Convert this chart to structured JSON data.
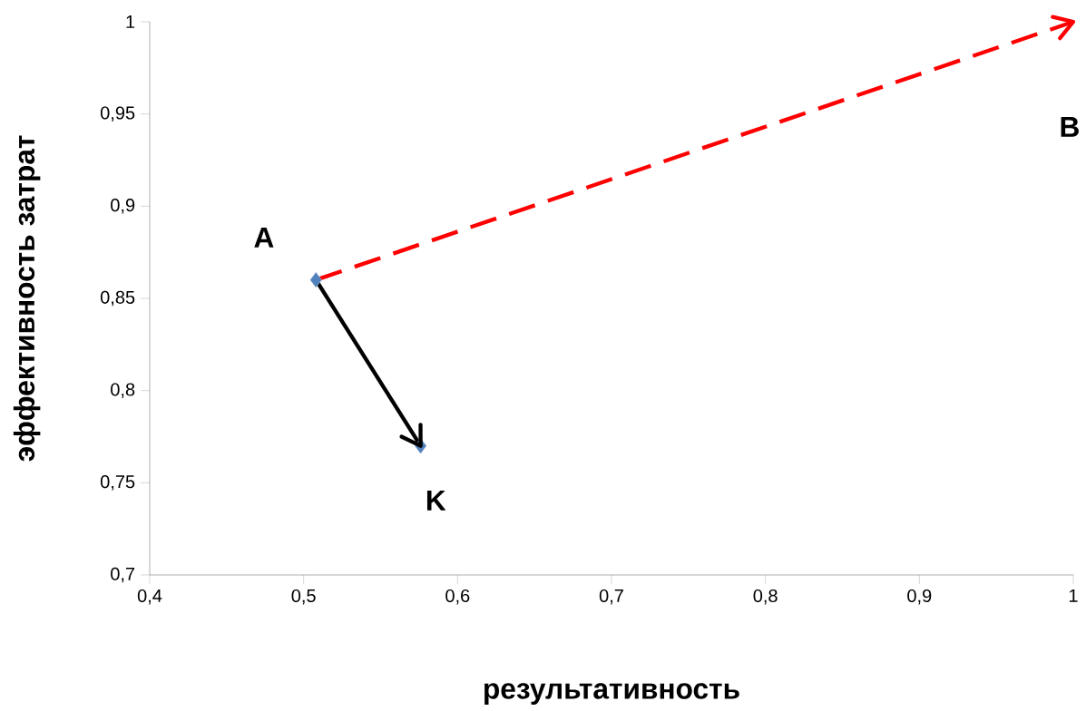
{
  "chart_data": {
    "type": "scatter",
    "xlabel": "результативность",
    "ylabel": "эффективность затрат",
    "xlim": [
      0.4,
      1
    ],
    "ylim": [
      0.7,
      1
    ],
    "xticks": [
      {
        "value": 0.4,
        "label": "0,4"
      },
      {
        "value": 0.5,
        "label": "0,5"
      },
      {
        "value": 0.6,
        "label": "0,6"
      },
      {
        "value": 0.7,
        "label": "0,7"
      },
      {
        "value": 0.8,
        "label": "0,8"
      },
      {
        "value": 0.9,
        "label": "0,9"
      },
      1
    ],
    "yticks": [
      {
        "value": 0.7,
        "label": "0,7"
      },
      {
        "value": 0.75,
        "label": "0,75"
      },
      {
        "value": 0.8,
        "label": "0,8"
      },
      {
        "value": 0.85,
        "label": "0,85"
      },
      {
        "value": 0.9,
        "label": "0,9"
      },
      {
        "value": 0.95,
        "label": "0,95"
      },
      1
    ],
    "series": [
      {
        "type": "line",
        "color": "#ff0000",
        "line_style": "dashed",
        "marker": "none",
        "x": [
          0.508,
          1
        ],
        "values": [
          0.86,
          1
        ]
      },
      {
        "type": "line",
        "color": "#000000",
        "line_style": "solid",
        "marker": "none",
        "x": [
          0.508,
          0.576
        ],
        "values": [
          0.86,
          0.77
        ]
      },
      {
        "color": "#4f81bd",
        "marker": "diamond",
        "x": [
          0.508,
          0.576
        ],
        "values": [
          0.86,
          0.77
        ]
      }
    ],
    "annotations": [
      {
        "text": "A",
        "x": 0.508,
        "y": 0.86
      },
      {
        "text": "K",
        "x": 0.576,
        "y": 0.77
      },
      "B"
    ]
  }
}
